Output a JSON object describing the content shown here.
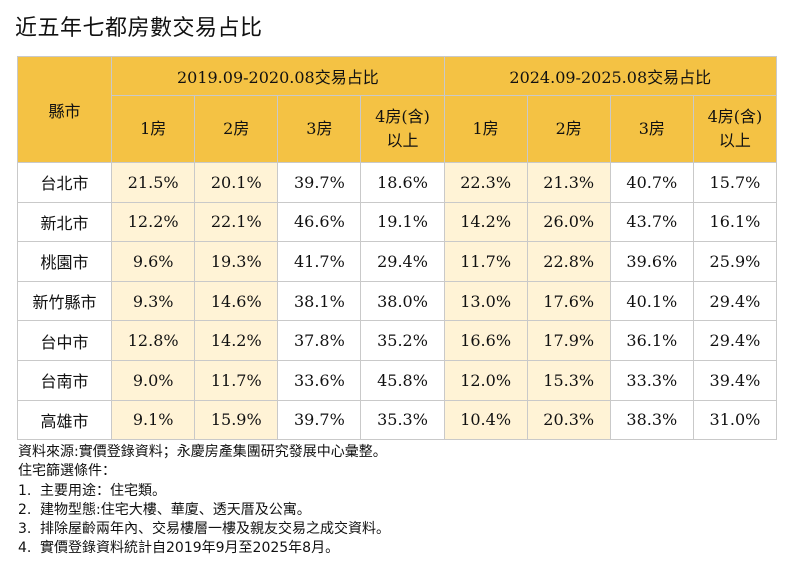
{
  "title": "近五年七都房數交易占比",
  "table": {
    "city_header": "縣市",
    "periods": [
      "2019.09-2020.08交易占比",
      "2024.09-2025.08交易占比"
    ],
    "room_headers": [
      "1房",
      "2房",
      "3房",
      "4房(含)\n以上"
    ],
    "rows": [
      {
        "city": "台北市",
        "values": [
          "21.5%",
          "20.1%",
          "39.7%",
          "18.6%",
          "22.3%",
          "21.3%",
          "40.7%",
          "15.7%"
        ]
      },
      {
        "city": "新北市",
        "values": [
          "12.2%",
          "22.1%",
          "46.6%",
          "19.1%",
          "14.2%",
          "26.0%",
          "43.7%",
          "16.1%"
        ]
      },
      {
        "city": "桃園市",
        "values": [
          "9.6%",
          "19.3%",
          "41.7%",
          "29.4%",
          "11.7%",
          "22.8%",
          "39.6%",
          "25.9%"
        ]
      },
      {
        "city": "新竹縣市",
        "values": [
          "9.3%",
          "14.6%",
          "38.1%",
          "38.0%",
          "13.0%",
          "17.6%",
          "40.1%",
          "29.4%"
        ]
      },
      {
        "city": "台中市",
        "values": [
          "12.8%",
          "14.2%",
          "37.8%",
          "35.2%",
          "16.6%",
          "17.9%",
          "36.1%",
          "29.4%"
        ]
      },
      {
        "city": "台南市",
        "values": [
          "9.0%",
          "11.7%",
          "33.6%",
          "45.8%",
          "12.0%",
          "15.3%",
          "33.3%",
          "39.4%"
        ]
      },
      {
        "city": "高雄市",
        "values": [
          "9.1%",
          "15.9%",
          "39.7%",
          "35.3%",
          "10.4%",
          "20.3%",
          "38.3%",
          "31.0%"
        ]
      }
    ]
  },
  "notes": {
    "source": "資料來源:實價登錄資料；永慶房產集團研究發展中心彙整。",
    "criteria_title": "住宅篩選條件：",
    "items": [
      {
        "num": "1.",
        "text": "主要用途：住宅類。"
      },
      {
        "num": "2.",
        "text": "建物型態:住宅大樓、華廈、透天厝及公寓。"
      },
      {
        "num": "3.",
        "text": "排除屋齡兩年內、交易樓層一樓及親友交易之成交資料。"
      },
      {
        "num": "4.",
        "text": "實價登錄資料統計自2019年9月至2025年8月。"
      }
    ]
  },
  "colors": {
    "header": "#f4c244",
    "highlight": "#fff3d6"
  }
}
